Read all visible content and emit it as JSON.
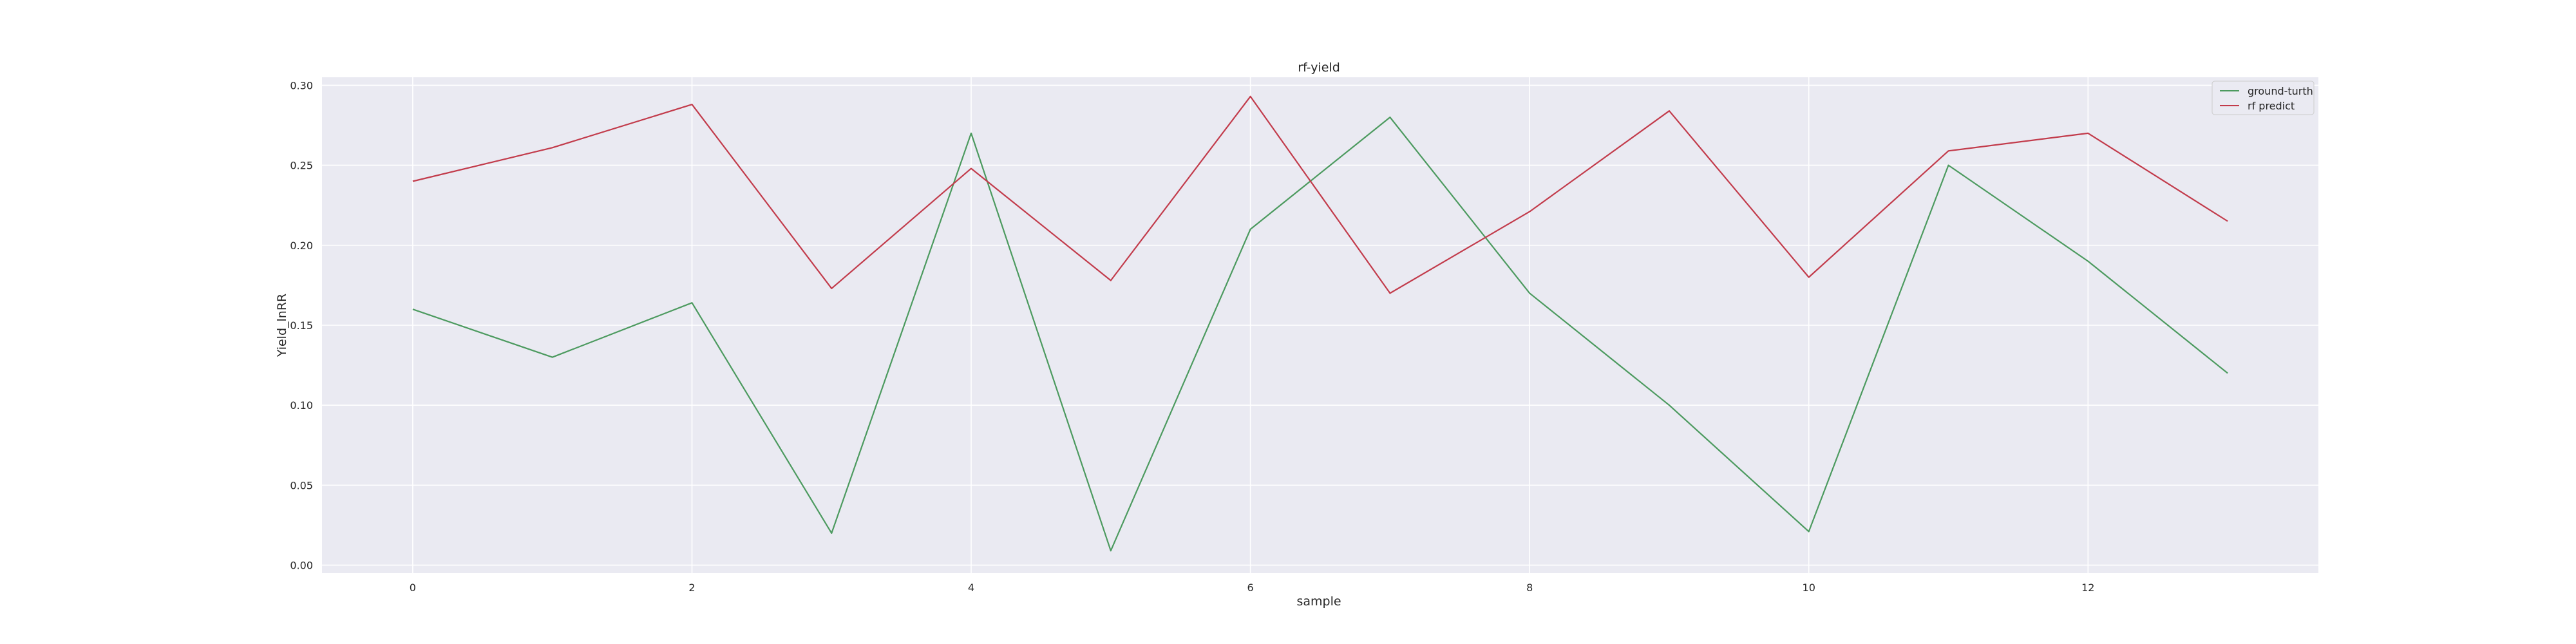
{
  "chart_data": {
    "type": "line",
    "title": "rf-yield",
    "xlabel": "sample",
    "ylabel": "Yield_lnRR",
    "x": [
      0,
      1,
      2,
      3,
      4,
      5,
      6,
      7,
      8,
      9,
      10,
      11,
      12,
      13
    ],
    "xlim": [
      -0.65,
      13.65
    ],
    "ylim": [
      -0.005,
      0.305
    ],
    "xticks": [
      0,
      2,
      4,
      6,
      8,
      10,
      12
    ],
    "yticks": [
      0.0,
      0.05,
      0.1,
      0.15,
      0.2,
      0.25,
      0.3
    ],
    "ytick_labels": [
      "0.00",
      "0.05",
      "0.10",
      "0.15",
      "0.20",
      "0.25",
      "0.30"
    ],
    "grid": true,
    "legend_position": "top-right",
    "series": [
      {
        "name": "ground-turth",
        "color": "#4c9a5f",
        "values": [
          0.16,
          0.13,
          0.164,
          0.02,
          0.27,
          0.009,
          0.21,
          0.28,
          0.17,
          0.1,
          0.021,
          0.25,
          0.19,
          0.12
        ]
      },
      {
        "name": "rf predict",
        "color": "#c23b4b",
        "values": [
          0.24,
          0.261,
          0.288,
          0.173,
          0.248,
          0.178,
          0.293,
          0.17,
          0.221,
          0.284,
          0.18,
          0.259,
          0.27,
          0.215
        ]
      }
    ]
  }
}
